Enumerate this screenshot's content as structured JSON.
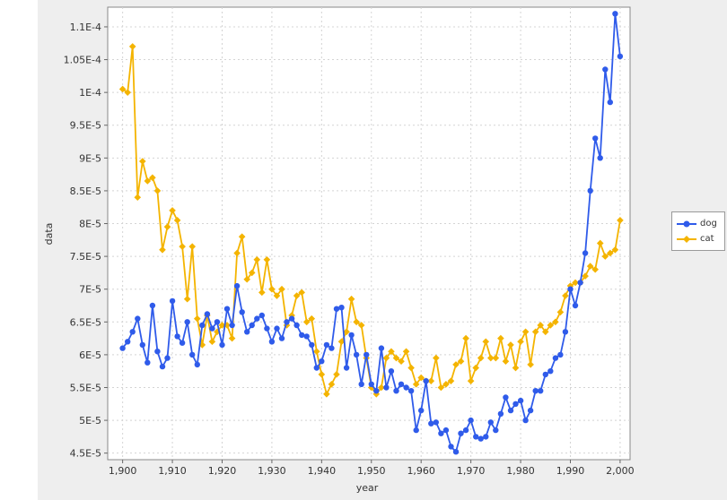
{
  "chart_data": {
    "type": "line",
    "title": "",
    "xlabel": "year",
    "ylabel": "data",
    "xlim": [
      1897,
      2002
    ],
    "ylim": [
      4.4e-05,
      0.000113
    ],
    "x_ticks": [
      {
        "value": 1900,
        "label": "1,900"
      },
      {
        "value": 1910,
        "label": "1,910"
      },
      {
        "value": 1920,
        "label": "1,920"
      },
      {
        "value": 1930,
        "label": "1,930"
      },
      {
        "value": 1940,
        "label": "1,940"
      },
      {
        "value": 1950,
        "label": "1,950"
      },
      {
        "value": 1960,
        "label": "1,960"
      },
      {
        "value": 1970,
        "label": "1,970"
      },
      {
        "value": 1980,
        "label": "1,980"
      },
      {
        "value": 1990,
        "label": "1,990"
      },
      {
        "value": 2000,
        "label": "2,000"
      }
    ],
    "y_ticks": [
      {
        "value": 4.5e-05,
        "label": "4.5E-5"
      },
      {
        "value": 5e-05,
        "label": "5E-5"
      },
      {
        "value": 5.5e-05,
        "label": "5.5E-5"
      },
      {
        "value": 6e-05,
        "label": "6E-5"
      },
      {
        "value": 6.5e-05,
        "label": "6.5E-5"
      },
      {
        "value": 7e-05,
        "label": "7E-5"
      },
      {
        "value": 7.5e-05,
        "label": "7.5E-5"
      },
      {
        "value": 8e-05,
        "label": "8E-5"
      },
      {
        "value": 8.5e-05,
        "label": "8.5E-5"
      },
      {
        "value": 9e-05,
        "label": "9E-5"
      },
      {
        "value": 9.5e-05,
        "label": "9.5E-5"
      },
      {
        "value": 0.0001,
        "label": "1E-4"
      },
      {
        "value": 0.000105,
        "label": "1.05E-4"
      },
      {
        "value": 0.00011,
        "label": "1.1E-4"
      }
    ],
    "grid": true,
    "legend_position": "right",
    "x": [
      1900,
      1901,
      1902,
      1903,
      1904,
      1905,
      1906,
      1907,
      1908,
      1909,
      1910,
      1911,
      1912,
      1913,
      1914,
      1915,
      1916,
      1917,
      1918,
      1919,
      1920,
      1921,
      1922,
      1923,
      1924,
      1925,
      1926,
      1927,
      1928,
      1929,
      1930,
      1931,
      1932,
      1933,
      1934,
      1935,
      1936,
      1937,
      1938,
      1939,
      1940,
      1941,
      1942,
      1943,
      1944,
      1945,
      1946,
      1947,
      1948,
      1949,
      1950,
      1951,
      1952,
      1953,
      1954,
      1955,
      1956,
      1957,
      1958,
      1959,
      1960,
      1961,
      1962,
      1963,
      1964,
      1965,
      1966,
      1967,
      1968,
      1969,
      1970,
      1971,
      1972,
      1973,
      1974,
      1975,
      1976,
      1977,
      1978,
      1979,
      1980,
      1981,
      1982,
      1983,
      1984,
      1985,
      1986,
      1987,
      1988,
      1989,
      1990,
      1991,
      1992,
      1993,
      1994,
      1995,
      1996,
      1997,
      1998,
      1999,
      2000
    ],
    "series": [
      {
        "name": "dog",
        "color": "#2f5bea",
        "values": [
          6.1e-05,
          6.2e-05,
          6.35e-05,
          6.55e-05,
          6.15e-05,
          5.88e-05,
          6.75e-05,
          6.05e-05,
          5.82e-05,
          5.95e-05,
          6.82e-05,
          6.28e-05,
          6.18e-05,
          6.5e-05,
          6e-05,
          5.85e-05,
          6.45e-05,
          6.62e-05,
          6.4e-05,
          6.5e-05,
          6.15e-05,
          6.7e-05,
          6.45e-05,
          7.05e-05,
          6.65e-05,
          6.35e-05,
          6.45e-05,
          6.55e-05,
          6.6e-05,
          6.4e-05,
          6.2e-05,
          6.4e-05,
          6.25e-05,
          6.5e-05,
          6.55e-05,
          6.45e-05,
          6.3e-05,
          6.28e-05,
          6.15e-05,
          5.8e-05,
          5.9e-05,
          6.15e-05,
          6.1e-05,
          6.7e-05,
          6.72e-05,
          5.8e-05,
          6.3e-05,
          6e-05,
          5.55e-05,
          6e-05,
          5.55e-05,
          5.45e-05,
          6.1e-05,
          5.5e-05,
          5.75e-05,
          5.45e-05,
          5.55e-05,
          5.5e-05,
          5.45e-05,
          4.85e-05,
          5.15e-05,
          5.6e-05,
          4.95e-05,
          4.97e-05,
          4.8e-05,
          4.85e-05,
          4.6e-05,
          4.52e-05,
          4.8e-05,
          4.85e-05,
          5e-05,
          4.75e-05,
          4.72e-05,
          4.75e-05,
          4.97e-05,
          4.85e-05,
          5.1e-05,
          5.35e-05,
          5.15e-05,
          5.25e-05,
          5.3e-05,
          5e-05,
          5.15e-05,
          5.45e-05,
          5.45e-05,
          5.7e-05,
          5.75e-05,
          5.95e-05,
          6e-05,
          6.35e-05,
          7e-05,
          6.75e-05,
          7.1e-05,
          7.55e-05,
          8.5e-05,
          9.3e-05,
          9e-05,
          0.0001035,
          9.85e-05,
          0.000112,
          0.0001055
        ]
      },
      {
        "name": "cat",
        "color": "#f4b400",
        "values": [
          0.0001005,
          0.0001,
          0.000107,
          8.4e-05,
          8.95e-05,
          8.65e-05,
          8.7e-05,
          8.5e-05,
          7.6e-05,
          7.95e-05,
          8.2e-05,
          8.05e-05,
          7.65e-05,
          6.85e-05,
          7.65e-05,
          6.55e-05,
          6.15e-05,
          6.6e-05,
          6.2e-05,
          6.35e-05,
          6.45e-05,
          6.45e-05,
          6.25e-05,
          7.55e-05,
          7.8e-05,
          7.15e-05,
          7.25e-05,
          7.45e-05,
          6.95e-05,
          7.45e-05,
          7e-05,
          6.9e-05,
          7e-05,
          6.45e-05,
          6.6e-05,
          6.9e-05,
          6.95e-05,
          6.5e-05,
          6.55e-05,
          6.05e-05,
          5.7e-05,
          5.4e-05,
          5.55e-05,
          5.7e-05,
          6.2e-05,
          6.35e-05,
          6.85e-05,
          6.5e-05,
          6.45e-05,
          5.95e-05,
          5.5e-05,
          5.4e-05,
          5.5e-05,
          5.95e-05,
          6.05e-05,
          5.95e-05,
          5.9e-05,
          6.05e-05,
          5.8e-05,
          5.55e-05,
          5.65e-05,
          5.6e-05,
          5.6e-05,
          5.95e-05,
          5.5e-05,
          5.55e-05,
          5.6e-05,
          5.85e-05,
          5.9e-05,
          6.25e-05,
          5.6e-05,
          5.8e-05,
          5.95e-05,
          6.2e-05,
          5.95e-05,
          5.95e-05,
          6.25e-05,
          5.9e-05,
          6.15e-05,
          5.8e-05,
          6.2e-05,
          6.35e-05,
          5.85e-05,
          6.35e-05,
          6.45e-05,
          6.35e-05,
          6.45e-05,
          6.5e-05,
          6.65e-05,
          6.9e-05,
          7.05e-05,
          7.1e-05,
          7.1e-05,
          7.2e-05,
          7.35e-05,
          7.3e-05,
          7.7e-05,
          7.5e-05,
          7.55e-05,
          7.6e-05,
          8.05e-05
        ]
      }
    ]
  }
}
